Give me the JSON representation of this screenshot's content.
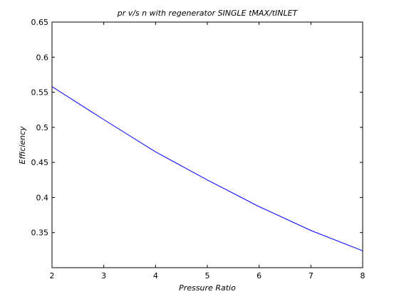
{
  "chart_data": {
    "type": "line",
    "title": "pr v/s n with regenerator SINGLE tMAX/tINLET",
    "xlabel": "Pressure Ratio",
    "ylabel": "Efficiency",
    "xlim": [
      2,
      8
    ],
    "ylim": [
      0.3,
      0.65
    ],
    "xticks": [
      "2",
      "3",
      "4",
      "5",
      "6",
      "7",
      "8"
    ],
    "yticks": [
      "0.35",
      "0.4",
      "0.45",
      "0.5",
      "0.55",
      "0.6",
      "0.65"
    ],
    "grid": false,
    "series": [
      {
        "color": "#0000ff",
        "x": [
          2,
          3,
          4,
          5,
          6,
          7,
          8
        ],
        "values": [
          0.558,
          0.511,
          0.465,
          0.425,
          0.387,
          0.353,
          0.324
        ]
      }
    ]
  }
}
